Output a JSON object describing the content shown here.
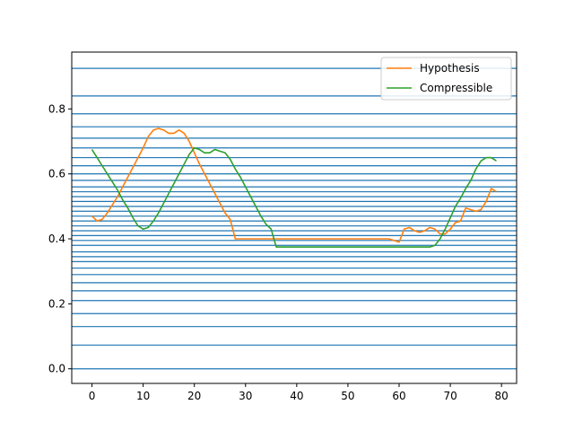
{
  "chart_data": {
    "type": "line",
    "title": "",
    "xlabel": "",
    "ylabel": "",
    "xlim": [
      -3.95,
      82.95
    ],
    "ylim": [
      -0.045,
      0.975
    ],
    "xticks": [
      0,
      10,
      20,
      30,
      40,
      50,
      60,
      70,
      80
    ],
    "yticks": [
      0.0,
      0.2,
      0.4,
      0.6,
      0.8
    ],
    "ytick_labels": [
      "0.0",
      "0.2",
      "0.4",
      "0.6",
      "0.8"
    ],
    "legend_position": "upper right",
    "hlines": {
      "color": "#1f77b4",
      "y": [
        0.0,
        0.073,
        0.13,
        0.17,
        0.21,
        0.24,
        0.265,
        0.29,
        0.31,
        0.33,
        0.345,
        0.36,
        0.38,
        0.395,
        0.41,
        0.425,
        0.44,
        0.455,
        0.47,
        0.485,
        0.5,
        0.515,
        0.53,
        0.545,
        0.56,
        0.58,
        0.6,
        0.625,
        0.65,
        0.68,
        0.71,
        0.745,
        0.785,
        0.84,
        0.925
      ]
    },
    "series": [
      {
        "name": "Hypothesis",
        "color": "#ff7f0e",
        "x": [
          0,
          1,
          2,
          3,
          4,
          5,
          6,
          7,
          8,
          9,
          10,
          11,
          12,
          13,
          14,
          15,
          16,
          17,
          18,
          19,
          20,
          21,
          22,
          23,
          24,
          25,
          26,
          27,
          28,
          29,
          30,
          31,
          32,
          33,
          34,
          35,
          36,
          37,
          38,
          39,
          40,
          41,
          42,
          43,
          44,
          45,
          46,
          47,
          48,
          49,
          50,
          51,
          52,
          53,
          54,
          55,
          56,
          57,
          58,
          59,
          60,
          61,
          62,
          63,
          64,
          65,
          66,
          67,
          68,
          69,
          70,
          71,
          72,
          73,
          74,
          75,
          76,
          77,
          78,
          79
        ],
        "values": [
          0.47,
          0.455,
          0.46,
          0.48,
          0.505,
          0.53,
          0.56,
          0.59,
          0.62,
          0.65,
          0.68,
          0.715,
          0.735,
          0.74,
          0.735,
          0.725,
          0.725,
          0.735,
          0.725,
          0.7,
          0.665,
          0.63,
          0.6,
          0.57,
          0.54,
          0.51,
          0.48,
          0.46,
          0.4,
          0.4,
          0.4,
          0.4,
          0.4,
          0.4,
          0.4,
          0.4,
          0.4,
          0.4,
          0.4,
          0.4,
          0.4,
          0.4,
          0.4,
          0.4,
          0.4,
          0.4,
          0.4,
          0.4,
          0.4,
          0.4,
          0.4,
          0.4,
          0.4,
          0.4,
          0.4,
          0.4,
          0.4,
          0.4,
          0.4,
          0.395,
          0.39,
          0.43,
          0.435,
          0.425,
          0.42,
          0.425,
          0.435,
          0.43,
          0.415,
          0.415,
          0.43,
          0.45,
          0.455,
          0.495,
          0.49,
          0.485,
          0.49,
          0.515,
          0.555,
          0.545
        ]
      },
      {
        "name": "Compressible",
        "color": "#2ca02c",
        "x": [
          0,
          1,
          2,
          3,
          4,
          5,
          6,
          7,
          8,
          9,
          10,
          11,
          12,
          13,
          14,
          15,
          16,
          17,
          18,
          19,
          20,
          21,
          22,
          23,
          24,
          25,
          26,
          27,
          28,
          29,
          30,
          31,
          32,
          33,
          34,
          35,
          36,
          37,
          38,
          39,
          40,
          41,
          42,
          43,
          44,
          45,
          46,
          47,
          48,
          49,
          50,
          51,
          52,
          53,
          54,
          55,
          56,
          57,
          58,
          59,
          60,
          61,
          62,
          63,
          64,
          65,
          66,
          67,
          68,
          69,
          70,
          71,
          72,
          73,
          74,
          75,
          76,
          77,
          78,
          79
        ],
        "values": [
          0.675,
          0.65,
          0.625,
          0.6,
          0.575,
          0.55,
          0.52,
          0.495,
          0.465,
          0.44,
          0.43,
          0.435,
          0.455,
          0.48,
          0.51,
          0.54,
          0.57,
          0.6,
          0.63,
          0.66,
          0.68,
          0.675,
          0.665,
          0.665,
          0.675,
          0.67,
          0.665,
          0.645,
          0.615,
          0.59,
          0.56,
          0.53,
          0.5,
          0.47,
          0.445,
          0.43,
          0.375,
          0.375,
          0.375,
          0.375,
          0.375,
          0.375,
          0.375,
          0.375,
          0.375,
          0.375,
          0.375,
          0.375,
          0.375,
          0.375,
          0.375,
          0.375,
          0.375,
          0.375,
          0.375,
          0.375,
          0.375,
          0.375,
          0.375,
          0.375,
          0.375,
          0.375,
          0.375,
          0.375,
          0.375,
          0.375,
          0.375,
          0.38,
          0.4,
          0.43,
          0.465,
          0.5,
          0.525,
          0.555,
          0.58,
          0.615,
          0.64,
          0.65,
          0.65,
          0.64
        ]
      }
    ]
  }
}
